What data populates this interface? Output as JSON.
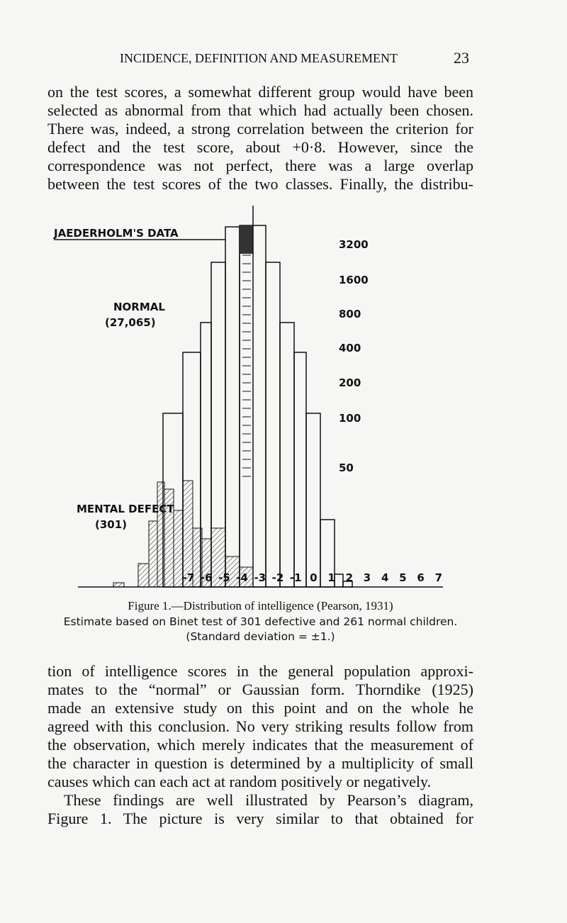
{
  "header": {
    "title": "INCIDENCE, DEFINITION AND MEASUREMENT",
    "page_number": "23"
  },
  "body_top": {
    "lines": [
      "on the test scores, a somewhat different group would have been",
      "selected as abnormal from that which had actually been chosen.",
      "There was, indeed, a strong correlation between the criterion for",
      "defect and the test score, about +0·8. However, since the",
      "correspondence was not perfect, there was a large overlap",
      "between the test scores of the two classes. Finally, the distribu-"
    ]
  },
  "figure": {
    "title": "JAEDERHOLM'S DATA",
    "normal_label": [
      "NORMAL",
      "(27,065)"
    ],
    "defect_label": [
      "MENTAL DEFECT",
      "(301)"
    ],
    "y_labels": [
      "3200",
      "1600",
      "800",
      "400",
      "200",
      "100",
      "50"
    ],
    "x_labels": [
      "-7",
      "-6",
      "-5",
      "-4",
      "-3",
      "-2",
      "-1",
      "0",
      "1",
      "2",
      "3",
      "4",
      "5",
      "6",
      "7"
    ],
    "caption": [
      "Figure 1.—Distribution of intelligence (Pearson, 1931)",
      "Estimate based on Binet test of 301 defective and 261 normal children.",
      "(Standard deviation = ±1.)"
    ]
  },
  "body_bottom": {
    "lines": [
      "tion of intelligence scores in the general population approxi-",
      "mates to the “normal” or Gaussian form. Thorndike (1925)",
      "made an extensive study on this point and on the whole he",
      "agreed with this conclusion. No very striking results follow from",
      "the observation, which merely indicates that the measurement of",
      "the character in question is determined by a multiplicity of small",
      "causes which can each act at random positively or negatively.",
      "These findings are well illustrated by Pearson’s diagram,",
      "Figure 1. The picture is very similar to that obtained for"
    ]
  }
}
